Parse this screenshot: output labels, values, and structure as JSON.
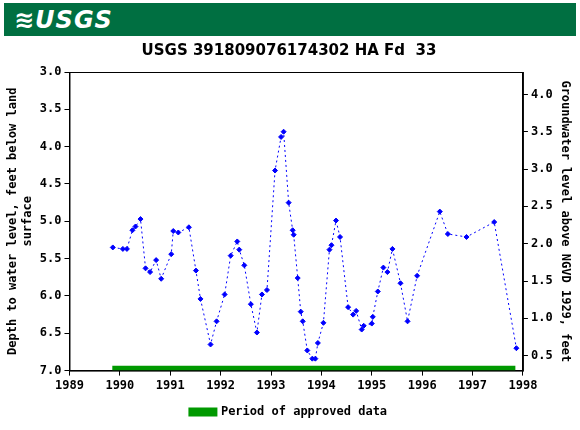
{
  "logo_text": "≋USGS",
  "chart_data": {
    "type": "line",
    "title": "USGS 391809076174302 HA Fd  33",
    "ylabel": [
      "Depth to water level, feet below land",
      "surface"
    ],
    "y2label": "Groundwater level above NGVD 1929, feet",
    "xlim": [
      1989,
      1998
    ],
    "xticks": [
      1989,
      1990,
      1991,
      1992,
      1993,
      1994,
      1995,
      1996,
      1997,
      1998
    ],
    "ylim": [
      3,
      7
    ],
    "yticks": [
      {
        "value": 3,
        "label": "3.0"
      },
      {
        "value": 3.5,
        "label": "3.5"
      },
      {
        "value": 4,
        "label": "4.0"
      },
      {
        "value": 4.5,
        "label": "4.5"
      },
      {
        "value": 5,
        "label": "5.0"
      },
      {
        "value": 5.5,
        "label": "5.5"
      },
      {
        "value": 6,
        "label": "6.0"
      },
      {
        "value": 6.5,
        "label": "6.5"
      },
      {
        "value": 7,
        "label": "7.0"
      }
    ],
    "y2lim": [
      0.3,
      4.3
    ],
    "y2ticks": [
      {
        "value": 0.5,
        "label": "0.5"
      },
      {
        "value": 1,
        "label": "1.0"
      },
      {
        "value": 1.5,
        "label": "1.5"
      },
      {
        "value": 2,
        "label": "2.0"
      },
      {
        "value": 2.5,
        "label": "2.5"
      },
      {
        "value": 3,
        "label": "3.0"
      },
      {
        "value": 3.5,
        "label": "3.5"
      },
      {
        "value": 4,
        "label": "4.0"
      }
    ],
    "grid": false,
    "legend": "bottom",
    "series": [
      {
        "color": "#0000ff",
        "marker": "diamond",
        "line_style": "dotted",
        "x": [
          1989.86,
          1990.06,
          1990.14,
          1990.25,
          1990.31,
          1990.41,
          1990.51,
          1990.6,
          1990.72,
          1990.82,
          1991.02,
          1991.06,
          1991.16,
          1991.37,
          1991.51,
          1991.6,
          1991.8,
          1991.92,
          1992.08,
          1992.2,
          1992.33,
          1992.37,
          1992.47,
          1992.6,
          1992.72,
          1992.82,
          1992.92,
          1993.08,
          1993.2,
          1993.25,
          1993.35,
          1993.43,
          1993.45,
          1993.53,
          1993.59,
          1993.63,
          1993.72,
          1993.82,
          1993.88,
          1993.93,
          1994.04,
          1994.16,
          1994.2,
          1994.29,
          1994.37,
          1994.53,
          1994.63,
          1994.69,
          1994.8,
          1994.84,
          1995.0,
          1995.02,
          1995.12,
          1995.23,
          1995.31,
          1995.41,
          1995.57,
          1995.71,
          1995.9,
          1996.35,
          1996.51,
          1996.88,
          1997.43,
          1997.87
        ],
        "values": [
          5.35,
          5.37,
          5.37,
          5.12,
          5.07,
          4.97,
          5.63,
          5.68,
          5.52,
          5.77,
          5.44,
          5.13,
          5.15,
          5.08,
          5.66,
          6.04,
          6.65,
          6.34,
          5.98,
          5.46,
          5.27,
          5.38,
          5.59,
          6.11,
          6.49,
          5.98,
          5.92,
          4.32,
          3.87,
          3.8,
          4.75,
          5.12,
          5.18,
          5.76,
          6.21,
          6.34,
          6.73,
          6.84,
          6.84,
          6.63,
          6.36,
          5.38,
          5.32,
          4.99,
          5.21,
          6.15,
          6.25,
          6.2,
          6.45,
          6.4,
          6.37,
          6.28,
          5.94,
          5.62,
          5.68,
          5.37,
          5.83,
          6.34,
          5.73,
          4.87,
          5.17,
          5.21,
          5.01,
          6.7
        ]
      },
      {
        "name": "Period of approved data",
        "color": "#009900",
        "marker": "none",
        "line_style": "solid",
        "x": [
          1989.85,
          1997.85
        ],
        "values": [
          6.97,
          6.97
        ]
      }
    ]
  }
}
